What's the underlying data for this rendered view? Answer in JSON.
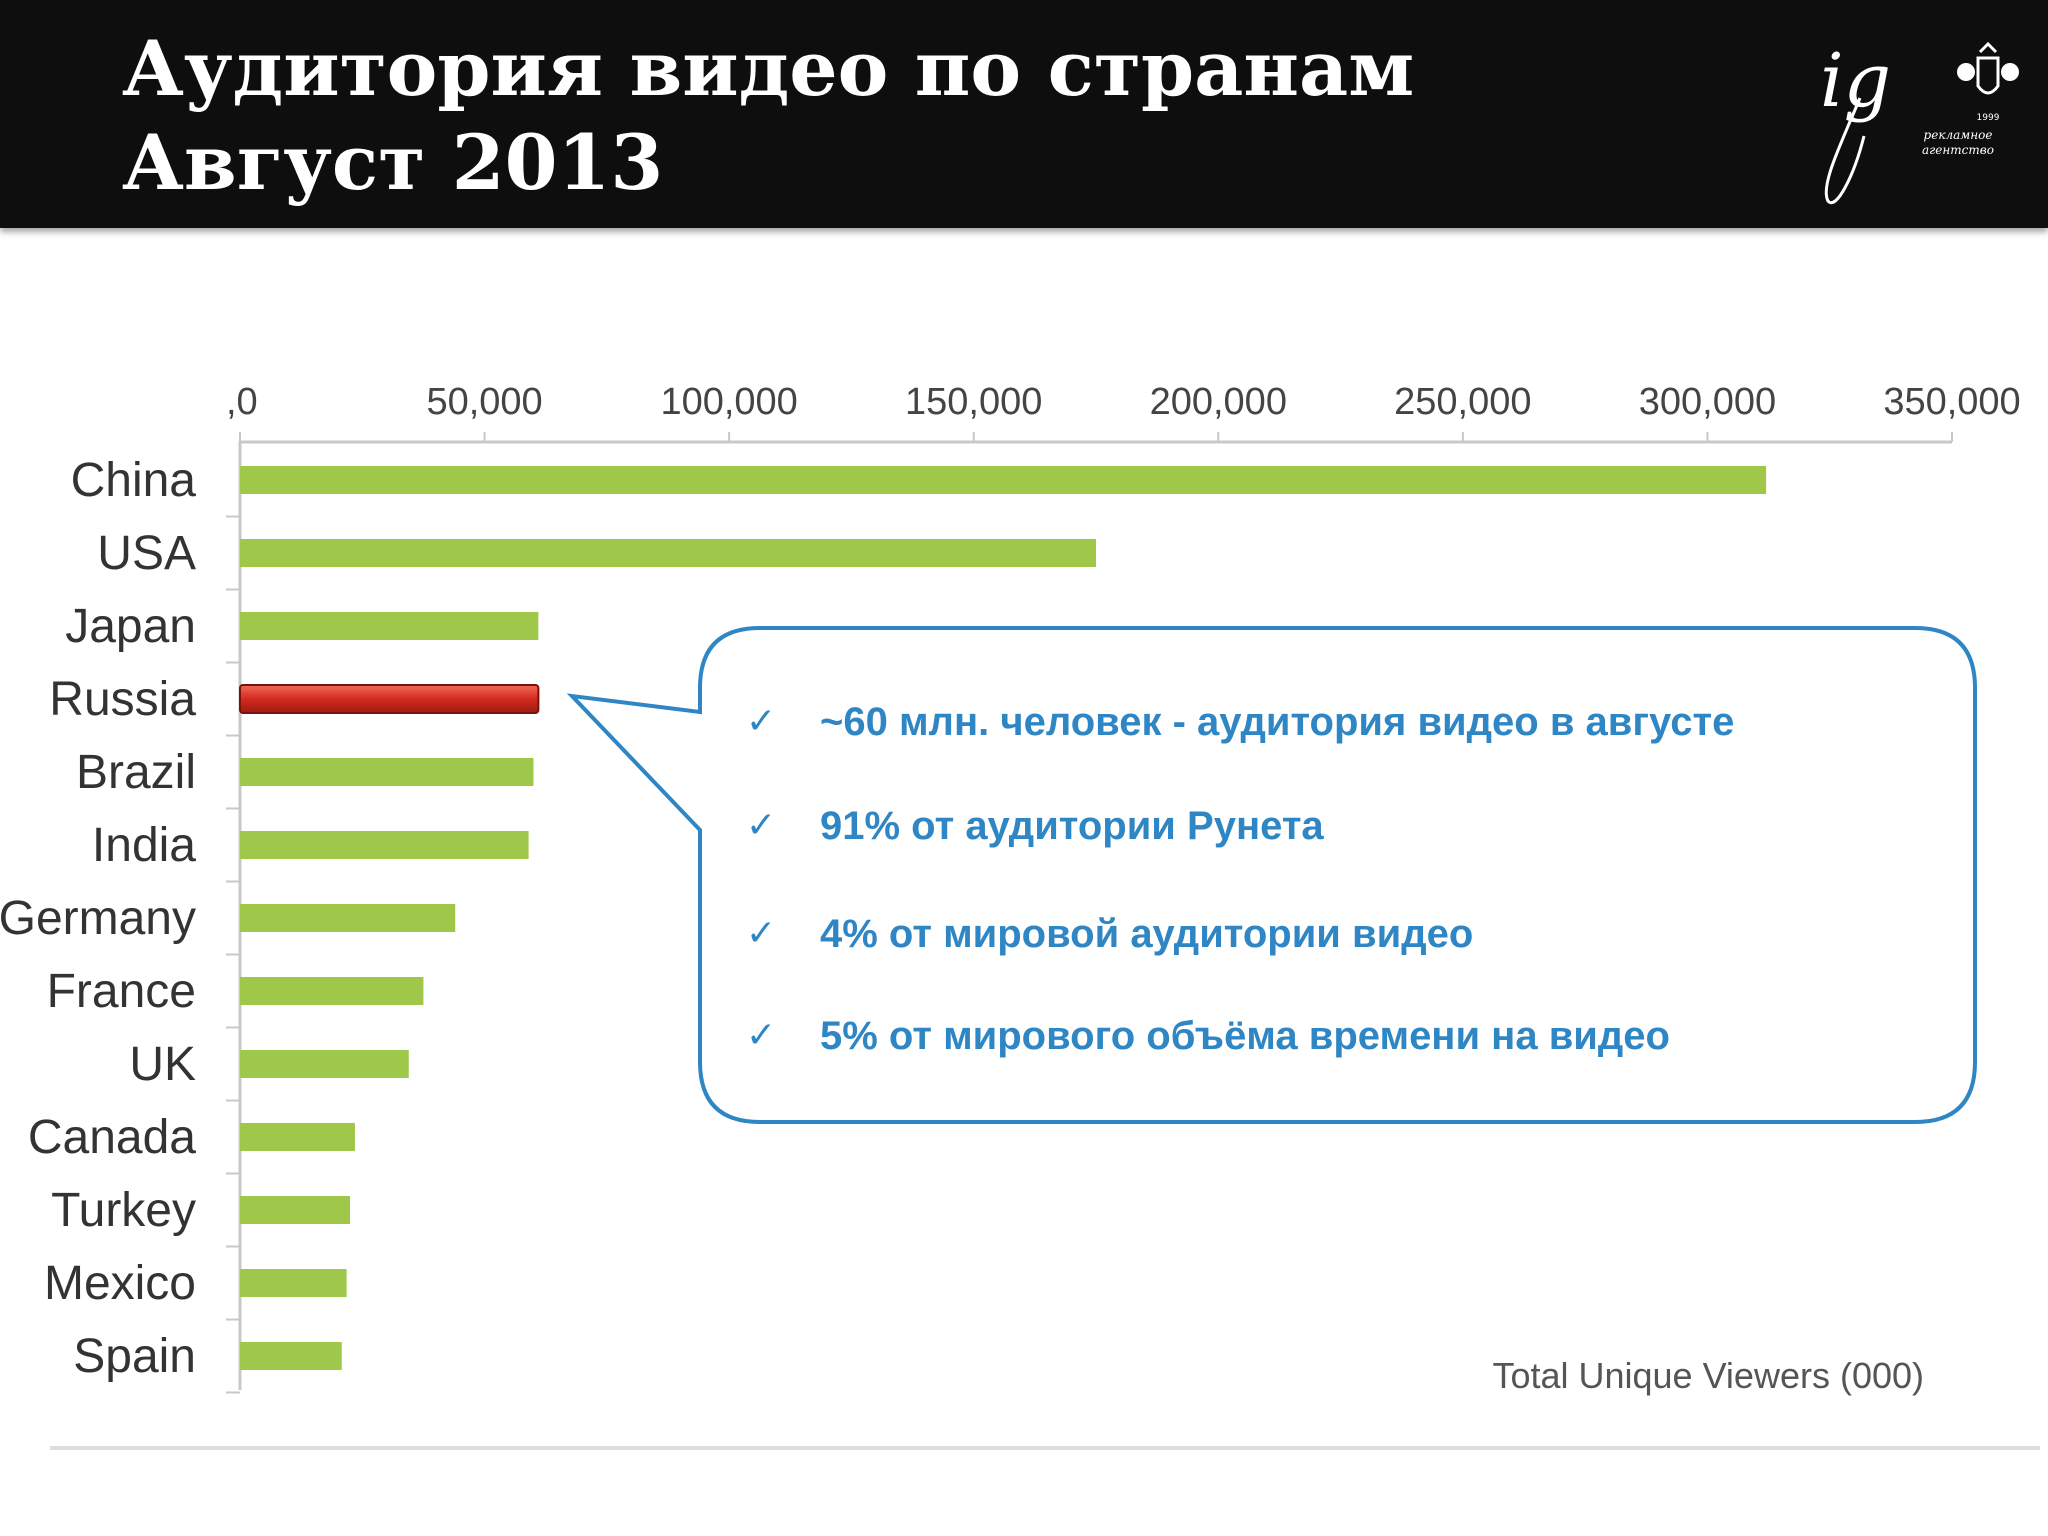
{
  "header": {
    "title_line1": "Аудитория видео по странам",
    "title_line2": "Август 2013",
    "logo_mark": "ig",
    "logo_year": "1999",
    "logo_line1": "рекламное",
    "logo_line2": "агентство"
  },
  "chart_data": {
    "type": "bar",
    "orientation": "horizontal",
    "categories": [
      "China",
      "USA",
      "Japan",
      "Russia",
      "Brazil",
      "India",
      "Germany",
      "France",
      "UK",
      "Canada",
      "Turkey",
      "Mexico",
      "Spain"
    ],
    "values": [
      312000,
      175000,
      61000,
      61000,
      60000,
      59000,
      44000,
      37500,
      34500,
      23500,
      22500,
      21800,
      20800
    ],
    "highlight": "Russia",
    "xlim": [
      0,
      350000
    ],
    "xticks": [
      0,
      50000,
      100000,
      150000,
      200000,
      250000,
      300000,
      350000
    ],
    "xtick_labels": [
      ",0",
      "50,000",
      "100,000",
      "150,000",
      "200,000",
      "250,000",
      "300,000",
      "350,000"
    ],
    "xaxis_position": "top",
    "note": "Total Unique Viewers (000)",
    "colors": {
      "bar": "#9fc84a",
      "highlight": "#d42a1e",
      "callout": "#2f86c4"
    }
  },
  "callout": {
    "check_icon": "checkmark-icon",
    "items": [
      "~60 млн. человек - аудитория видео в августе",
      "91% от аудитории Рунета",
      "4% от мировой аудитории видео",
      "5% от мирового объёма времени на видео"
    ]
  }
}
